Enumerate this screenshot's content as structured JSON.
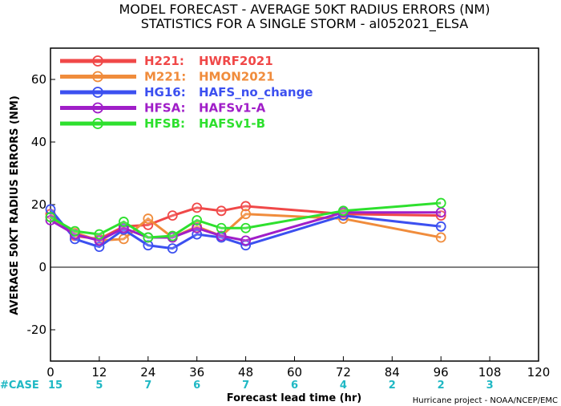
{
  "chart_data": {
    "type": "line",
    "title": "MODEL FORECAST - AVERAGE 50KT RADIUS ERRORS (NM)",
    "subtitle": "STATISTICS FOR A SINGLE STORM - al052021_ELSA",
    "xlabel": "Forecast lead time (hr)",
    "ylabel": "AVERAGE 50KT RADIUS ERRORS (NM)",
    "xlim": [
      0,
      120
    ],
    "ylim": [
      -30,
      70
    ],
    "xticks": [
      0,
      12,
      24,
      36,
      48,
      60,
      72,
      84,
      96,
      108,
      120
    ],
    "yticks": [
      -20,
      0,
      20,
      40,
      60
    ],
    "zero_line": true,
    "grid": false,
    "legend_position": "top-left",
    "case_row": {
      "label": "#CASE",
      "entries": [
        {
          "x": 0,
          "n": "15"
        },
        {
          "x": 12,
          "n": "5"
        },
        {
          "x": 24,
          "n": "7"
        },
        {
          "x": 36,
          "n": "6"
        },
        {
          "x": 48,
          "n": "7"
        },
        {
          "x": 60,
          "n": "6"
        },
        {
          "x": 72,
          "n": "4"
        },
        {
          "x": 84,
          "n": "2"
        },
        {
          "x": 96,
          "n": "2"
        },
        {
          "x": 108,
          "n": "3"
        }
      ]
    },
    "credit": "Hurricane project - NOAA/NCEP/EMC",
    "series": [
      {
        "code": "H221:",
        "name": "HWRF2021",
        "color": "#f04848",
        "x": [
          0,
          6,
          12,
          18,
          24,
          30,
          36,
          42,
          48,
          72,
          96
        ],
        "y": [
          17,
          10,
          9,
          13,
          13.5,
          16.5,
          19,
          18,
          19.5,
          17,
          16.5
        ]
      },
      {
        "code": "M221:",
        "name": "HMON2021",
        "color": "#f08c3c",
        "x": [
          0,
          6,
          12,
          18,
          24,
          30,
          36,
          42,
          48,
          72,
          96
        ],
        "y": [
          16,
          11,
          8.5,
          9,
          15.5,
          9.5,
          13,
          10,
          17,
          15.5,
          9.5
        ]
      },
      {
        "code": "HG16:",
        "name": "HAFS_no_change",
        "color": "#3c50f0",
        "x": [
          0,
          6,
          12,
          18,
          24,
          30,
          36,
          42,
          48,
          72,
          96
        ],
        "y": [
          18.5,
          9,
          6.5,
          12,
          7,
          6,
          10.5,
          9.5,
          7,
          16.5,
          13
        ]
      },
      {
        "code": "HFSA:",
        "name": "HAFSv1-A",
        "color": "#a01ec8",
        "x": [
          0,
          6,
          12,
          18,
          24,
          30,
          36,
          42,
          48,
          72,
          96
        ],
        "y": [
          15,
          10.5,
          8.5,
          12.5,
          9.5,
          9.5,
          12.5,
          10,
          8.5,
          17.5,
          17.5
        ]
      },
      {
        "code": "HFSB:",
        "name": "HAFSv1-B",
        "color": "#2ee02e",
        "x": [
          0,
          6,
          12,
          18,
          24,
          30,
          36,
          42,
          48,
          72,
          96
        ],
        "y": [
          16,
          11.5,
          10.5,
          14.5,
          9.5,
          10,
          15,
          12.5,
          12.5,
          18,
          20.5
        ]
      }
    ]
  }
}
